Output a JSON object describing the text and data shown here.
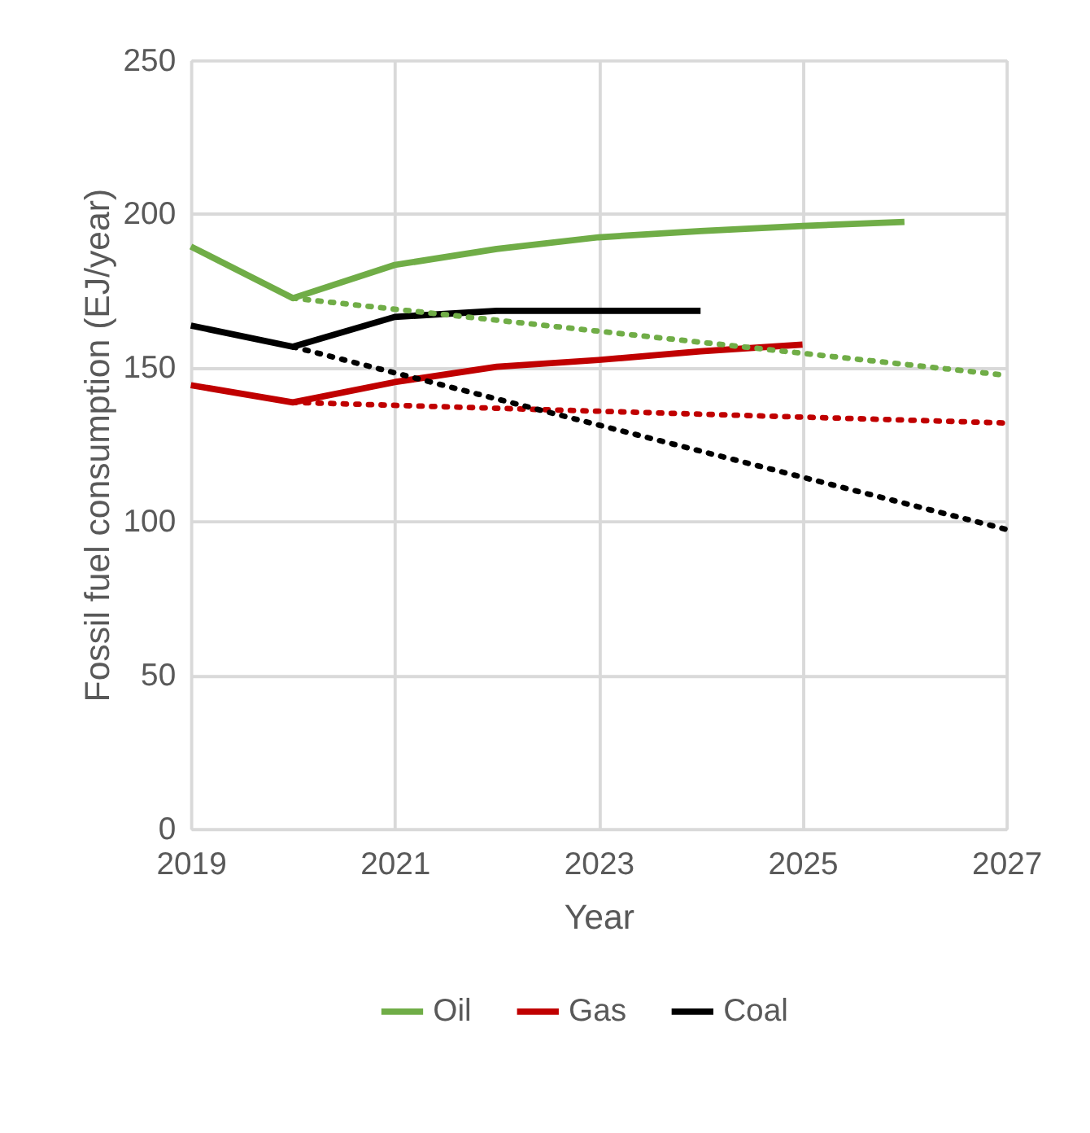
{
  "chart_data": {
    "type": "line",
    "xlabel": "Year",
    "ylabel": "Fossil fuel consumption (EJ/year)",
    "xlim": [
      2019,
      2027
    ],
    "xticks": [
      2019,
      2021,
      2023,
      2025,
      2027
    ],
    "ylim": [
      0,
      250
    ],
    "yticks": [
      0,
      50,
      100,
      150,
      200,
      250
    ],
    "grid": true,
    "legend": "bottom",
    "series": [
      {
        "name": "Oil",
        "color": "#70ad47",
        "x": [
          2019,
          2020,
          2021,
          2022,
          2023,
          2024,
          2025,
          2026
        ],
        "values": [
          189.4,
          172.6,
          183.4,
          188.6,
          192.4,
          194.4,
          196.1,
          197.4
        ]
      },
      {
        "name": "Gas",
        "color": "#c00000",
        "x": [
          2019,
          2020,
          2021,
          2022,
          2023,
          2024,
          2025
        ],
        "values": [
          144.3,
          138.7,
          145.3,
          150.3,
          152.5,
          155.3,
          157.5
        ]
      },
      {
        "name": "Coal",
        "color": "#000000",
        "x": [
          2019,
          2020,
          2021,
          2022,
          2023,
          2024
        ],
        "values": [
          163.7,
          156.8,
          166.5,
          168.5,
          168.5,
          168.5
        ]
      },
      {
        "color": "#70ad47",
        "line_style": "dotted",
        "x": [
          2020,
          2027
        ],
        "values": [
          172.6,
          147.5
        ]
      },
      {
        "color": "#c00000",
        "line_style": "dotted",
        "x": [
          2020,
          2027
        ],
        "values": [
          138.7,
          132.0
        ]
      },
      {
        "color": "#000000",
        "line_style": "dotted",
        "x": [
          2020,
          2027
        ],
        "values": [
          156.8,
          97.4
        ]
      }
    ]
  }
}
